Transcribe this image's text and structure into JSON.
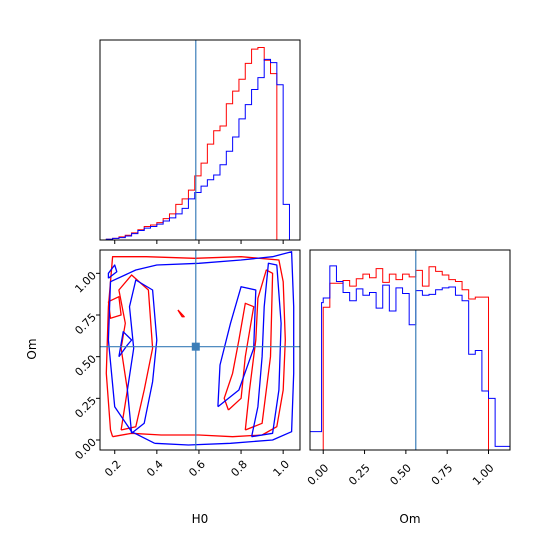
{
  "colors": {
    "series_a": "#ff0000",
    "series_b": "#0000ff",
    "truth": "#3a7db8",
    "frame": "#000000"
  },
  "chart_data": {
    "type": "corner",
    "parameters": [
      "H0",
      "Om"
    ],
    "truth": {
      "H0": 0.585,
      "Om": 0.56
    },
    "hist_H0": {
      "type": "histogram",
      "xlabel": "",
      "xlim": [
        0.13,
        1.08
      ],
      "bin_edges": [
        0.13,
        0.16,
        0.19,
        0.22,
        0.25,
        0.28,
        0.31,
        0.34,
        0.37,
        0.4,
        0.43,
        0.46,
        0.49,
        0.52,
        0.55,
        0.58,
        0.61,
        0.64,
        0.67,
        0.7,
        0.73,
        0.76,
        0.79,
        0.82,
        0.85,
        0.88,
        0.91,
        0.94,
        0.97,
        1.0,
        1.03,
        1.06
      ],
      "series": [
        {
          "name": "",
          "color": "#ff0000",
          "values": [
            0,
            1,
            2,
            4,
            6,
            9,
            13,
            17,
            19,
            22,
            27,
            33,
            45,
            52,
            63,
            81,
            97,
            121,
            138,
            144,
            172,
            188,
            203,
            223,
            241,
            243,
            227,
            210,
            0,
            0,
            0
          ]
        },
        {
          "name": "",
          "color": "#0000ff",
          "values": [
            0,
            1,
            2,
            3,
            5,
            8,
            12,
            15,
            17,
            20,
            24,
            28,
            33,
            40,
            52,
            60,
            68,
            76,
            82,
            95,
            112,
            130,
            153,
            171,
            190,
            205,
            228,
            224,
            196,
            45,
            0
          ]
        }
      ]
    },
    "hist_Om": {
      "type": "histogram",
      "xlabel": "Om",
      "xlim": [
        -0.08,
        1.13
      ],
      "xticks": [
        "0.00",
        "0.25",
        "0.50",
        "0.75",
        "1.00"
      ],
      "bin_edges": [
        -0.08,
        -0.01,
        0.0,
        0.04,
        0.08,
        0.12,
        0.16,
        0.2,
        0.24,
        0.28,
        0.32,
        0.36,
        0.4,
        0.44,
        0.48,
        0.52,
        0.56,
        0.6,
        0.64,
        0.68,
        0.72,
        0.76,
        0.8,
        0.84,
        0.88,
        0.92,
        0.96,
        1.0,
        1.04,
        1.08,
        1.13
      ],
      "series": [
        {
          "name": "",
          "color": "#ff0000",
          "values": [
            0,
            0,
            155,
            181,
            181,
            184,
            178,
            186,
            191,
            187,
            197,
            182,
            191,
            185,
            191,
            188,
            195,
            178,
            199,
            194,
            190,
            185,
            183,
            174,
            164,
            166,
            166,
            0,
            0,
            0
          ]
        },
        {
          "name": "",
          "color": "#0000ff",
          "values": [
            20,
            160,
            165,
            200,
            183,
            171,
            162,
            175,
            168,
            171,
            154,
            179,
            151,
            176,
            170,
            136,
            173,
            168,
            169,
            174,
            176,
            177,
            168,
            162,
            104,
            108,
            64,
            56,
            4,
            4
          ]
        }
      ]
    },
    "contour": {
      "type": "contour",
      "xlabel": "H0",
      "ylabel": "Om",
      "xlim": [
        0.13,
        1.08
      ],
      "ylim": [
        -0.06,
        1.14
      ],
      "xticks": [
        "0.2",
        "0.4",
        "0.6",
        "0.8",
        "1.0"
      ],
      "yticks": [
        "0.00",
        "0.25",
        "0.50",
        "0.75",
        "1.00"
      ],
      "series": [
        {
          "name": "",
          "color": "#ff0000",
          "levels": [
            [
              [
                0.19,
                0.02
              ],
              [
                0.28,
                0.04
              ],
              [
                0.42,
                0.03
              ],
              [
                0.6,
                0.03
              ],
              [
                0.76,
                0.02
              ],
              [
                0.9,
                0.03
              ],
              [
                0.97,
                0.08
              ],
              [
                1.0,
                0.3
              ],
              [
                1.01,
                0.6
              ],
              [
                1.0,
                0.95
              ],
              [
                0.98,
                1.08
              ],
              [
                0.8,
                1.1
              ],
              [
                0.58,
                1.09
              ],
              [
                0.35,
                1.1
              ],
              [
                0.19,
                1.1
              ],
              [
                0.17,
                0.8
              ],
              [
                0.16,
                0.4
              ],
              [
                0.18,
                0.06
              ],
              [
                0.19,
                0.02
              ]
            ],
            [
              [
                0.82,
                0.06
              ],
              [
                0.9,
                0.1
              ],
              [
                0.94,
                0.5
              ],
              [
                0.95,
                1.0
              ],
              [
                0.92,
                1.02
              ],
              [
                0.88,
                0.85
              ],
              [
                0.87,
                0.6
              ],
              [
                0.84,
                0.3
              ],
              [
                0.82,
                0.06
              ]
            ],
            [
              [
                0.23,
                0.06
              ],
              [
                0.3,
                0.08
              ],
              [
                0.34,
                0.3
              ],
              [
                0.38,
                0.55
              ],
              [
                0.36,
                0.9
              ],
              [
                0.28,
                0.99
              ],
              [
                0.22,
                0.9
              ],
              [
                0.25,
                0.7
              ],
              [
                0.23,
                0.55
              ],
              [
                0.26,
                0.3
              ],
              [
                0.23,
                0.06
              ]
            ],
            [
              [
                0.74,
                0.18
              ],
              [
                0.8,
                0.25
              ],
              [
                0.82,
                0.5
              ],
              [
                0.86,
                0.8
              ],
              [
                0.82,
                0.82
              ],
              [
                0.79,
                0.6
              ],
              [
                0.76,
                0.4
              ],
              [
                0.72,
                0.25
              ],
              [
                0.74,
                0.18
              ]
            ],
            [
              [
                0.5,
                0.78
              ],
              [
                0.52,
                0.74
              ],
              [
                0.53,
                0.74
              ],
              [
                0.5,
                0.78
              ]
            ],
            [
              [
                0.17,
                0.83
              ],
              [
                0.22,
                0.86
              ],
              [
                0.23,
                0.75
              ],
              [
                0.18,
                0.73
              ],
              [
                0.17,
                0.83
              ]
            ]
          ]
        },
        {
          "name": "",
          "color": "#0000ff",
          "levels": [
            [
              [
                0.39,
                -0.02
              ],
              [
                0.55,
                -0.03
              ],
              [
                0.75,
                -0.02
              ],
              [
                0.95,
                0.0
              ],
              [
                1.04,
                0.05
              ],
              [
                1.05,
                0.4
              ],
              [
                1.05,
                0.8
              ],
              [
                1.04,
                1.13
              ],
              [
                0.95,
                1.1
              ],
              [
                0.8,
                1.08
              ],
              [
                0.6,
                1.06
              ],
              [
                0.4,
                1.05
              ],
              [
                0.3,
                1.02
              ],
              [
                0.18,
                0.95
              ],
              [
                0.17,
                0.6
              ],
              [
                0.2,
                0.2
              ],
              [
                0.28,
                0.05
              ],
              [
                0.39,
                -0.02
              ]
            ],
            [
              [
                0.85,
                0.02
              ],
              [
                0.95,
                0.04
              ],
              [
                0.98,
                0.3
              ],
              [
                0.99,
                0.7
              ],
              [
                0.97,
                1.05
              ],
              [
                0.93,
                1.06
              ],
              [
                0.91,
                0.8
              ],
              [
                0.9,
                0.5
              ],
              [
                0.88,
                0.2
              ],
              [
                0.85,
                0.02
              ]
            ],
            [
              [
                0.28,
                0.04
              ],
              [
                0.34,
                0.1
              ],
              [
                0.38,
                0.35
              ],
              [
                0.4,
                0.6
              ],
              [
                0.38,
                0.9
              ],
              [
                0.3,
                0.96
              ],
              [
                0.27,
                0.8
              ],
              [
                0.29,
                0.55
              ],
              [
                0.26,
                0.3
              ],
              [
                0.28,
                0.04
              ]
            ],
            [
              [
                0.69,
                0.2
              ],
              [
                0.79,
                0.3
              ],
              [
                0.86,
                0.55
              ],
              [
                0.87,
                0.9
              ],
              [
                0.8,
                0.92
              ],
              [
                0.75,
                0.7
              ],
              [
                0.7,
                0.45
              ],
              [
                0.69,
                0.2
              ]
            ],
            [
              [
                0.17,
                0.97
              ],
              [
                0.21,
                1.01
              ],
              [
                0.2,
                1.05
              ],
              [
                0.17,
                1.0
              ],
              [
                0.17,
                0.97
              ]
            ],
            [
              [
                0.22,
                0.5
              ],
              [
                0.26,
                0.57
              ],
              [
                0.28,
                0.6
              ],
              [
                0.24,
                0.65
              ],
              [
                0.22,
                0.5
              ]
            ]
          ]
        }
      ]
    }
  }
}
